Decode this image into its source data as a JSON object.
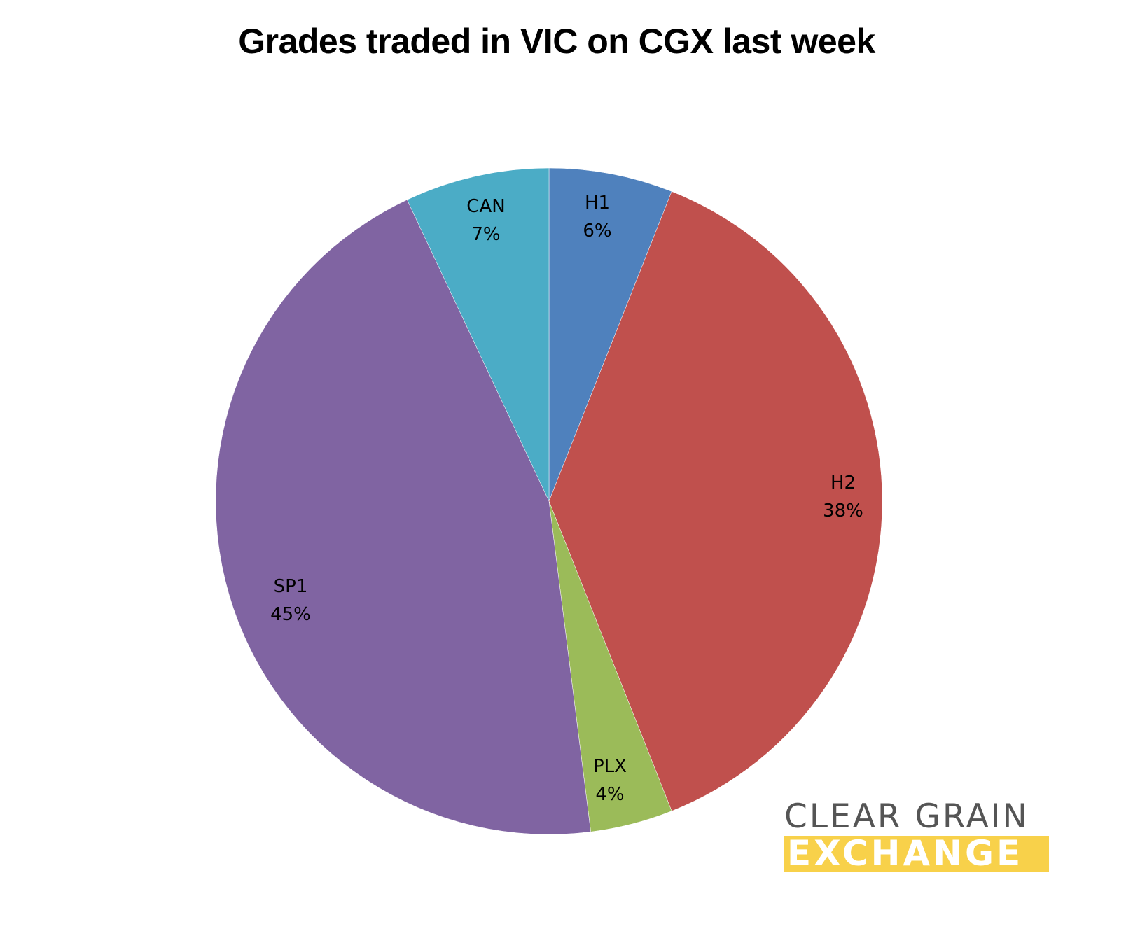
{
  "chart_data": {
    "type": "pie",
    "title": "Grades traded in VIC on CGX last week",
    "categories": [
      "H1",
      "H2",
      "PLX",
      "SP1",
      "CAN"
    ],
    "values": [
      6,
      38,
      4,
      45,
      7
    ],
    "unit": "%",
    "colors": [
      "#4f81bd",
      "#c0504d",
      "#9bbb59",
      "#8064a2",
      "#4bacc6"
    ],
    "start_angle": "12 o'clock, clockwise",
    "legend": "none (data labels on slices)"
  },
  "title": "Grades traded in VIC on CGX last week",
  "labels": [
    {
      "name": "H1",
      "pct": "6%"
    },
    {
      "name": "H2",
      "pct": "38%"
    },
    {
      "name": "PLX",
      "pct": "4%"
    },
    {
      "name": "SP1",
      "pct": "45%"
    },
    {
      "name": "CAN",
      "pct": "7%"
    }
  ],
  "logo": {
    "line1": "CLEAR GRAIN",
    "line2": "EXCHANGE",
    "text_color": "#555555",
    "band_color": "#f8d14a"
  }
}
